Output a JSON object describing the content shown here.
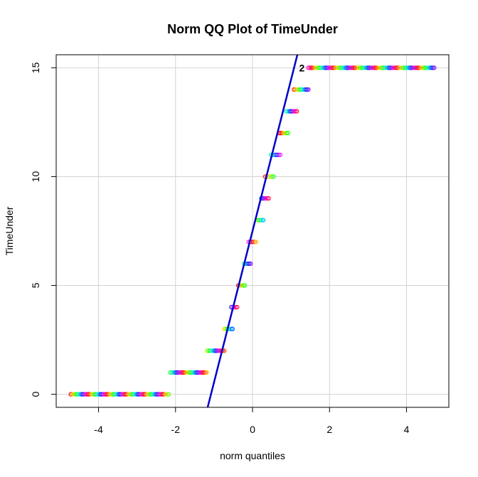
{
  "chart_data": {
    "type": "scatter",
    "title": "Norm QQ Plot of TimeUnder",
    "xlabel": "norm quantiles",
    "ylabel": "TimeUnder",
    "xlim": [
      -5.1,
      5.1
    ],
    "ylim": [
      -0.6,
      15.6
    ],
    "xticks": [
      -4,
      -2,
      0,
      2,
      4
    ],
    "yticks": [
      0,
      5,
      10,
      15
    ],
    "grid": true,
    "reference_line": {
      "intercept": 7.5,
      "slope": 6.95,
      "color": "#0000cc"
    },
    "point_label": {
      "text": "2",
      "x": 1.3,
      "y": 14.95
    },
    "point_colors": [
      "#ff0000",
      "#ff6a00",
      "#ffd500",
      "#bfff00",
      "#55ff00",
      "#00ff15",
      "#00ff80",
      "#00ffea",
      "#00aaff",
      "#0040ff",
      "#2a00ff",
      "#9500ff",
      "#ff00ff",
      "#ff0095",
      "#ff002b"
    ],
    "groups": [
      {
        "y": 0,
        "x_min": -4.72,
        "x_max": -2.18,
        "count": 80
      },
      {
        "y": 1,
        "x_min": -2.13,
        "x_max": -1.18,
        "count": 28
      },
      {
        "y": 2,
        "x_min": -1.18,
        "x_max": -0.73,
        "count": 14
      },
      {
        "y": 3,
        "x_min": -0.73,
        "x_max": -0.52,
        "count": 8
      },
      {
        "y": 4,
        "x_min": -0.55,
        "x_max": -0.4,
        "count": 5
      },
      {
        "y": 5,
        "x_min": -0.37,
        "x_max": -0.2,
        "count": 6
      },
      {
        "y": 6,
        "x_min": -0.22,
        "x_max": -0.05,
        "count": 6
      },
      {
        "y": 7,
        "x_min": -0.1,
        "x_max": 0.1,
        "count": 6
      },
      {
        "y": 8,
        "x_min": 0.12,
        "x_max": 0.28,
        "count": 6
      },
      {
        "y": 9,
        "x_min": 0.23,
        "x_max": 0.42,
        "count": 6
      },
      {
        "y": 10,
        "x_min": 0.33,
        "x_max": 0.55,
        "count": 6
      },
      {
        "y": 11,
        "x_min": 0.48,
        "x_max": 0.72,
        "count": 7
      },
      {
        "y": 12,
        "x_min": 0.68,
        "x_max": 0.92,
        "count": 8
      },
      {
        "y": 13,
        "x_min": 0.88,
        "x_max": 1.15,
        "count": 9
      },
      {
        "y": 14,
        "x_min": 1.08,
        "x_max": 1.45,
        "count": 12
      },
      {
        "y": 15,
        "x_min": 1.45,
        "x_max": 4.72,
        "count": 90
      }
    ]
  }
}
